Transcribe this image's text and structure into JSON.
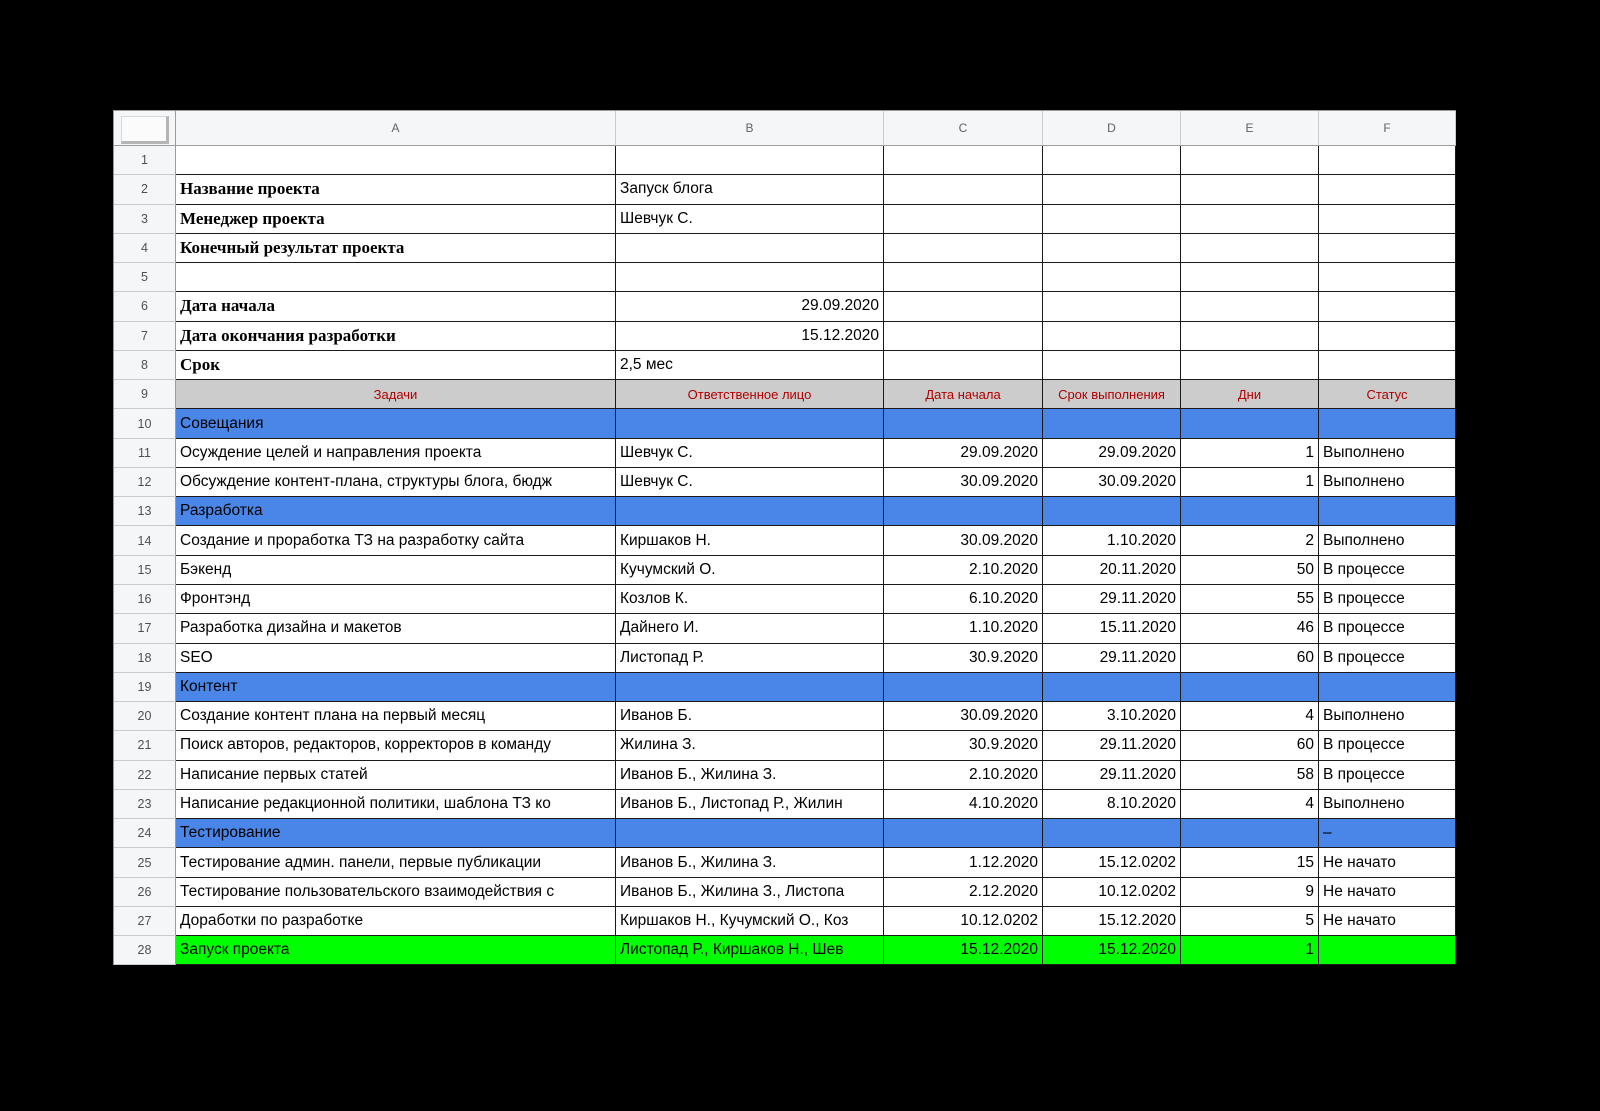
{
  "app": {
    "kind": "spreadsheet",
    "background": "#000000"
  },
  "colors": {
    "section_row": "#4a86e8",
    "launch_row": "#00ff00",
    "table_header_bg": "#cccccc",
    "table_header_text": "#b00000",
    "gutter_bg": "#f5f6f7",
    "grid_line": "#1a1a1a"
  },
  "columns": [
    "A",
    "B",
    "C",
    "D",
    "E",
    "F"
  ],
  "project_info": {
    "name_label": "Название проекта",
    "name_value": "Запуск блога",
    "manager_label": "Менеджер проекта",
    "manager_value": "Шевчук С.",
    "result_label": "Конечный результат проекта",
    "start_label": "Дата начала",
    "start_value": "29.09.2020",
    "end_label": "Дата окончания разработки",
    "end_value": "15.12.2020",
    "duration_label": "Срок",
    "duration_value": "2,5 мес"
  },
  "table_header": [
    "Задачи",
    "Ответственное лицо",
    "Дата начала",
    "Срок выполнения",
    "Дни",
    "Статус"
  ],
  "rows": [
    {
      "n": 1,
      "type": "blank",
      "cells": []
    },
    {
      "n": 2,
      "type": "info",
      "cells": [
        {
          "c": "A",
          "t": "Название проекта",
          "cls": "label"
        },
        {
          "c": "B",
          "t": "Запуск блога"
        }
      ]
    },
    {
      "n": 3,
      "type": "info",
      "cells": [
        {
          "c": "A",
          "t": "Менеджер проекта",
          "cls": "label"
        },
        {
          "c": "B",
          "t": "Шевчук С."
        }
      ]
    },
    {
      "n": 4,
      "type": "info",
      "cells": [
        {
          "c": "A",
          "t": "Конечный результат проекта",
          "cls": "label"
        }
      ]
    },
    {
      "n": 5,
      "type": "blank",
      "cells": []
    },
    {
      "n": 6,
      "type": "info",
      "cells": [
        {
          "c": "A",
          "t": "Дата начала",
          "cls": "label"
        },
        {
          "c": "B",
          "t": "29.09.2020",
          "align": "right"
        }
      ]
    },
    {
      "n": 7,
      "type": "info",
      "cells": [
        {
          "c": "A",
          "t": "Дата окончания разработки",
          "cls": "label"
        },
        {
          "c": "B",
          "t": "15.12.2020",
          "align": "right"
        }
      ]
    },
    {
      "n": 8,
      "type": "info",
      "cells": [
        {
          "c": "A",
          "t": "Срок",
          "cls": "label"
        },
        {
          "c": "B",
          "t": "2,5 мес"
        }
      ]
    },
    {
      "n": 9,
      "type": "th",
      "cells": [
        {
          "c": "A",
          "t": "Задачи"
        },
        {
          "c": "B",
          "t": "Ответственное лицо"
        },
        {
          "c": "C",
          "t": "Дата начала"
        },
        {
          "c": "D",
          "t": "Срок выполнения"
        },
        {
          "c": "E",
          "t": "Дни"
        },
        {
          "c": "F",
          "t": "Статус"
        }
      ]
    },
    {
      "n": 10,
      "type": "sec",
      "cells": [
        {
          "c": "A",
          "t": "Совещания"
        }
      ]
    },
    {
      "n": 11,
      "type": "task",
      "cells": [
        {
          "c": "A",
          "t": "Осуждение целей и направления проекта"
        },
        {
          "c": "B",
          "t": "Шевчук С."
        },
        {
          "c": "C",
          "t": "29.09.2020",
          "align": "right"
        },
        {
          "c": "D",
          "t": "29.09.2020",
          "align": "right"
        },
        {
          "c": "E",
          "t": "1",
          "align": "right"
        },
        {
          "c": "F",
          "t": "Выполнено"
        }
      ]
    },
    {
      "n": 12,
      "type": "task",
      "cells": [
        {
          "c": "A",
          "t": "Обсуждение контент-плана, структуры блога, бюдж"
        },
        {
          "c": "B",
          "t": "Шевчук С."
        },
        {
          "c": "C",
          "t": "30.09.2020",
          "align": "right"
        },
        {
          "c": "D",
          "t": "30.09.2020",
          "align": "right"
        },
        {
          "c": "E",
          "t": "1",
          "align": "right"
        },
        {
          "c": "F",
          "t": "Выполнено"
        }
      ]
    },
    {
      "n": 13,
      "type": "sec",
      "cells": [
        {
          "c": "A",
          "t": "Разработка"
        }
      ]
    },
    {
      "n": 14,
      "type": "task",
      "cells": [
        {
          "c": "A",
          "t": "Создание и проработка ТЗ на разработку сайта"
        },
        {
          "c": "B",
          "t": "Киршаков Н."
        },
        {
          "c": "C",
          "t": "30.09.2020",
          "align": "right"
        },
        {
          "c": "D",
          "t": "1.10.2020",
          "align": "right"
        },
        {
          "c": "E",
          "t": "2",
          "align": "right"
        },
        {
          "c": "F",
          "t": "Выполнено"
        }
      ]
    },
    {
      "n": 15,
      "type": "task",
      "cells": [
        {
          "c": "A",
          "t": "Бэкенд"
        },
        {
          "c": "B",
          "t": "Кучумский О."
        },
        {
          "c": "C",
          "t": "2.10.2020",
          "align": "right"
        },
        {
          "c": "D",
          "t": "20.11.2020",
          "align": "right"
        },
        {
          "c": "E",
          "t": "50",
          "align": "right"
        },
        {
          "c": "F",
          "t": "В процессе"
        }
      ]
    },
    {
      "n": 16,
      "type": "task",
      "cells": [
        {
          "c": "A",
          "t": "Фронтэнд"
        },
        {
          "c": "B",
          "t": "Козлов К."
        },
        {
          "c": "C",
          "t": "6.10.2020",
          "align": "right"
        },
        {
          "c": "D",
          "t": "29.11.2020",
          "align": "right"
        },
        {
          "c": "E",
          "t": "55",
          "align": "right"
        },
        {
          "c": "F",
          "t": "В процессе"
        }
      ]
    },
    {
      "n": 17,
      "type": "task",
      "cells": [
        {
          "c": "A",
          "t": "Разработка дизайна и макетов"
        },
        {
          "c": "B",
          "t": "Дайнего И."
        },
        {
          "c": "C",
          "t": "1.10.2020",
          "align": "right"
        },
        {
          "c": "D",
          "t": "15.11.2020",
          "align": "right"
        },
        {
          "c": "E",
          "t": "46",
          "align": "right"
        },
        {
          "c": "F",
          "t": "В процессе"
        }
      ]
    },
    {
      "n": 18,
      "type": "task",
      "cells": [
        {
          "c": "A",
          "t": "SEO"
        },
        {
          "c": "B",
          "t": "Листопад Р."
        },
        {
          "c": "C",
          "t": "30.9.2020",
          "align": "right"
        },
        {
          "c": "D",
          "t": "29.11.2020",
          "align": "right"
        },
        {
          "c": "E",
          "t": "60",
          "align": "right"
        },
        {
          "c": "F",
          "t": "В процессе"
        }
      ]
    },
    {
      "n": 19,
      "type": "sec",
      "cells": [
        {
          "c": "A",
          "t": "Контент"
        }
      ]
    },
    {
      "n": 20,
      "type": "task",
      "cells": [
        {
          "c": "A",
          "t": "Создание контент плана на первый месяц"
        },
        {
          "c": "B",
          "t": "Иванов Б."
        },
        {
          "c": "C",
          "t": "30.09.2020",
          "align": "right"
        },
        {
          "c": "D",
          "t": "3.10.2020",
          "align": "right"
        },
        {
          "c": "E",
          "t": "4",
          "align": "right"
        },
        {
          "c": "F",
          "t": "Выполнено"
        }
      ]
    },
    {
      "n": 21,
      "type": "task",
      "cells": [
        {
          "c": "A",
          "t": "Поиск авторов, редакторов, корректоров в команду"
        },
        {
          "c": "B",
          "t": "Жилина З."
        },
        {
          "c": "C",
          "t": "30.9.2020",
          "align": "right"
        },
        {
          "c": "D",
          "t": "29.11.2020",
          "align": "right"
        },
        {
          "c": "E",
          "t": "60",
          "align": "right"
        },
        {
          "c": "F",
          "t": "В процессе"
        }
      ]
    },
    {
      "n": 22,
      "type": "task",
      "cells": [
        {
          "c": "A",
          "t": "Написание первых статей"
        },
        {
          "c": "B",
          "t": "Иванов Б., Жилина З."
        },
        {
          "c": "C",
          "t": "2.10.2020",
          "align": "right"
        },
        {
          "c": "D",
          "t": "29.11.2020",
          "align": "right"
        },
        {
          "c": "E",
          "t": "58",
          "align": "right"
        },
        {
          "c": "F",
          "t": "В процессе"
        }
      ]
    },
    {
      "n": 23,
      "type": "task",
      "cells": [
        {
          "c": "A",
          "t": "Написание редакционной политики, шаблона ТЗ ко"
        },
        {
          "c": "B",
          "t": "Иванов Б., Листопад Р., Жилин"
        },
        {
          "c": "C",
          "t": "4.10.2020",
          "align": "right"
        },
        {
          "c": "D",
          "t": "8.10.2020",
          "align": "right"
        },
        {
          "c": "E",
          "t": "4",
          "align": "right"
        },
        {
          "c": "F",
          "t": "Выполнено"
        }
      ]
    },
    {
      "n": 24,
      "type": "sec",
      "cells": [
        {
          "c": "A",
          "t": "Тестирование"
        },
        {
          "c": "F",
          "t": "–"
        }
      ]
    },
    {
      "n": 25,
      "type": "task",
      "cells": [
        {
          "c": "A",
          "t": "Тестирование админ. панели, первые публикации"
        },
        {
          "c": "B",
          "t": "Иванов Б., Жилина З."
        },
        {
          "c": "C",
          "t": "1.12.2020",
          "align": "right"
        },
        {
          "c": "D",
          "t": "15.12.0202",
          "align": "right"
        },
        {
          "c": "E",
          "t": "15",
          "align": "right"
        },
        {
          "c": "F",
          "t": "Не начато"
        }
      ]
    },
    {
      "n": 26,
      "type": "task",
      "cells": [
        {
          "c": "A",
          "t": "Тестирование пользовательского взаимодействия с"
        },
        {
          "c": "B",
          "t": "Иванов Б., Жилина З., Листопа"
        },
        {
          "c": "C",
          "t": "2.12.2020",
          "align": "right"
        },
        {
          "c": "D",
          "t": "10.12.0202",
          "align": "right"
        },
        {
          "c": "E",
          "t": "9",
          "align": "right"
        },
        {
          "c": "F",
          "t": "Не начато"
        }
      ]
    },
    {
      "n": 27,
      "type": "task",
      "cells": [
        {
          "c": "A",
          "t": "Доработки по разработке"
        },
        {
          "c": "B",
          "t": "Киршаков Н., Кучумский О., Коз"
        },
        {
          "c": "C",
          "t": "10.12.0202",
          "align": "right"
        },
        {
          "c": "D",
          "t": "15.12.2020",
          "align": "right"
        },
        {
          "c": "E",
          "t": "5",
          "align": "right"
        },
        {
          "c": "F",
          "t": "Не начато"
        }
      ]
    },
    {
      "n": 28,
      "type": "launch",
      "cells": [
        {
          "c": "A",
          "t": "Запуск проекта"
        },
        {
          "c": "B",
          "t": "Листопад Р., Киршаков Н., Шев"
        },
        {
          "c": "C",
          "t": "15.12.2020",
          "align": "right"
        },
        {
          "c": "D",
          "t": "15.12.2020",
          "align": "right"
        },
        {
          "c": "E",
          "t": "1",
          "align": "right"
        }
      ]
    }
  ]
}
